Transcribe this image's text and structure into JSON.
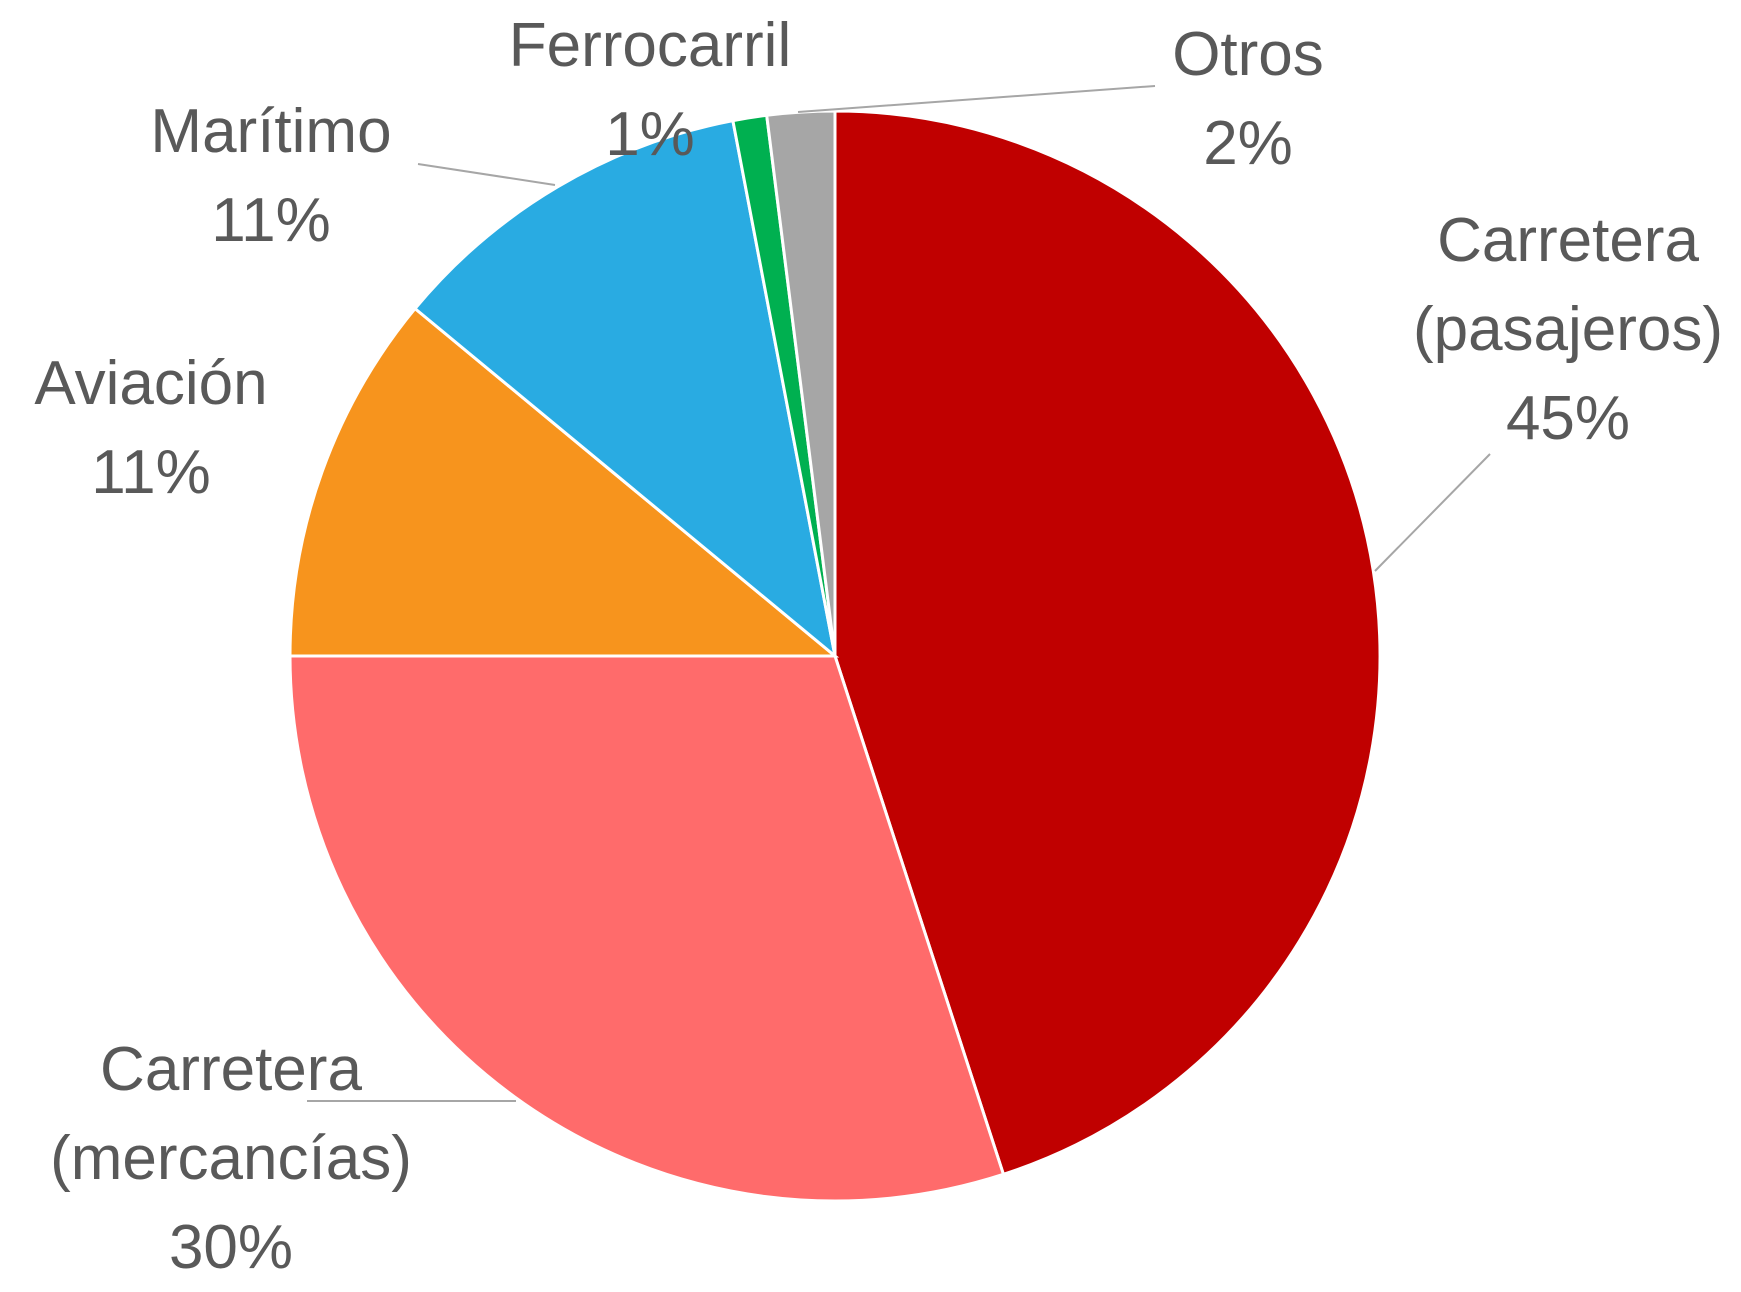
{
  "chart_data": {
    "type": "pie",
    "categories": [
      "Carretera (pasajeros)",
      "Carretera (mercancías)",
      "Aviación",
      "Marítimo",
      "Ferrocarril",
      "Otros"
    ],
    "values": [
      45,
      30,
      11,
      11,
      1,
      2
    ],
    "value_labels": [
      "45%",
      "30%",
      "11%",
      "11%",
      "1%",
      "2%"
    ],
    "colors": [
      "#c00000",
      "#ff6b6b",
      "#f7941d",
      "#29abe2",
      "#00b050",
      "#a6a6a6"
    ]
  }
}
